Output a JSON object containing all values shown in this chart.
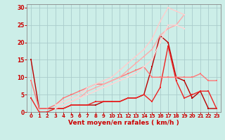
{
  "background_color": "#cceee8",
  "grid_color": "#aacccc",
  "xlabel": "Vent moyen/en rafales ( km/h )",
  "xlabel_color": "#cc0000",
  "xlabel_fontsize": 6.5,
  "tick_color": "#cc0000",
  "xlim": [
    -0.5,
    23.5
  ],
  "ylim": [
    0,
    31
  ],
  "yticks": [
    0,
    5,
    10,
    15,
    20,
    25,
    30
  ],
  "xticks": [
    0,
    1,
    2,
    3,
    4,
    5,
    6,
    7,
    8,
    9,
    10,
    11,
    12,
    13,
    14,
    15,
    16,
    17,
    18,
    19,
    20,
    21,
    22,
    23
  ],
  "lines": [
    {
      "x": [
        0,
        1,
        2,
        3,
        4,
        5,
        6,
        7,
        8,
        9,
        10,
        11,
        12,
        13,
        14,
        15,
        16,
        17,
        18,
        19,
        20,
        21,
        22,
        23
      ],
      "y": [
        15,
        1,
        1,
        1,
        1,
        2,
        2,
        2,
        2,
        3,
        3,
        3,
        4,
        4,
        5,
        13,
        22,
        20,
        10,
        9,
        4,
        6,
        1,
        1
      ],
      "color": "#bb0000",
      "lw": 1.0,
      "ms": 1.5
    },
    {
      "x": [
        0,
        1,
        2,
        3,
        4,
        5,
        6,
        7,
        8,
        9,
        10,
        11,
        12,
        13,
        14,
        15,
        16,
        17,
        18,
        19,
        20,
        21,
        22,
        23
      ],
      "y": [
        4,
        0,
        0,
        1,
        1,
        2,
        2,
        2,
        3,
        3,
        3,
        3,
        4,
        4,
        5,
        3,
        7,
        19,
        9,
        4,
        5,
        6,
        6,
        1
      ],
      "color": "#ee2222",
      "lw": 1.0,
      "ms": 1.5
    },
    {
      "x": [
        0,
        1,
        2,
        3,
        4,
        5,
        6,
        7,
        8,
        9,
        10,
        11,
        12,
        13,
        14,
        15,
        16,
        17,
        18,
        19,
        20,
        21,
        22,
        23
      ],
      "y": [
        9,
        1,
        1,
        2,
        4,
        5,
        6,
        7,
        8,
        8,
        9,
        10,
        11,
        12,
        13,
        10,
        10,
        10,
        10,
        10,
        10,
        11,
        9,
        9
      ],
      "color": "#ff7777",
      "lw": 1.0,
      "ms": 1.5
    },
    {
      "x": [
        3,
        4,
        5,
        6,
        7,
        8,
        9,
        10,
        11,
        12,
        13,
        14,
        15,
        16,
        17,
        18,
        19,
        20,
        21,
        22,
        23
      ],
      "y": [
        1,
        2,
        3,
        4,
        6,
        7,
        8,
        9,
        10,
        12,
        14,
        16,
        18,
        22,
        24,
        25,
        28,
        null,
        null,
        null,
        null
      ],
      "color": "#ffaaaa",
      "lw": 1.0,
      "ms": 1.5
    },
    {
      "x": [
        3,
        4,
        5,
        6,
        7,
        8,
        9,
        10,
        11,
        12,
        13,
        14,
        15,
        16,
        17,
        18,
        19,
        20,
        21,
        22,
        23
      ],
      "y": [
        2,
        3,
        4,
        5,
        7,
        8,
        9,
        10,
        12,
        14,
        16,
        18,
        21,
        26,
        30,
        29,
        28,
        null,
        null,
        null,
        null
      ],
      "color": "#ffcccc",
      "lw": 1.0,
      "ms": 1.5
    },
    {
      "x": [
        3,
        4,
        5,
        6,
        7,
        8,
        9,
        10,
        11,
        12,
        13,
        14,
        15,
        16,
        17,
        18,
        19,
        20,
        21,
        22,
        23
      ],
      "y": [
        1,
        2,
        3,
        4,
        5,
        6,
        7,
        8,
        9,
        10,
        11,
        13,
        15,
        20,
        25,
        25,
        24,
        null,
        null,
        null,
        null
      ],
      "color": "#ffd5d5",
      "lw": 1.0,
      "ms": 1.5
    }
  ]
}
